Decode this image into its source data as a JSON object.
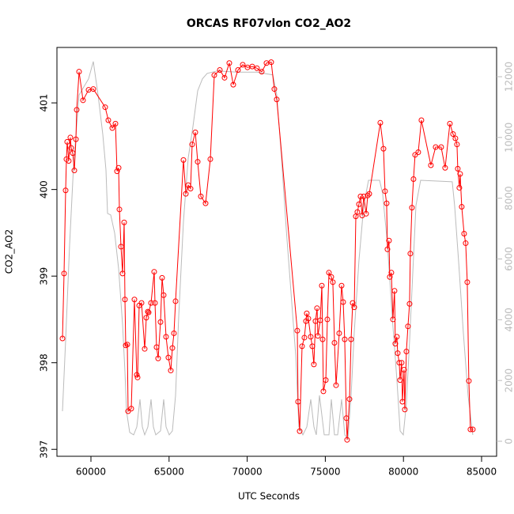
{
  "chart_data": {
    "type": "line",
    "title": "ORCAS RF07vlon CO2_AO2",
    "x_label": "UTC Seconds",
    "y_label": "CO2_AO2",
    "xlim": [
      57824,
      85961
    ],
    "xticks": [
      60000,
      65000,
      70000,
      75000,
      80000,
      85000
    ],
    "ylim": [
      396.92,
      401.64
    ],
    "yticks": [
      397,
      398,
      399,
      400,
      401
    ],
    "y2lim": [
      -495,
      12963
    ],
    "y2ticks": [
      0,
      2000,
      4000,
      6000,
      8000,
      10000,
      12000
    ],
    "series": [
      {
        "color": "#ff0000",
        "axis": "y",
        "markers": true,
        "x": [
          58178,
          58280,
          58380,
          58430,
          58480,
          58580,
          58683,
          58735,
          58836,
          58937,
          59039,
          59089,
          59241,
          59494,
          59848,
          60152,
          60911,
          61113,
          61366,
          61569,
          61670,
          61771,
          61822,
          61923,
          62024,
          62125,
          62176,
          62226,
          62328,
          62378,
          62580,
          62783,
          62934,
          62985,
          63086,
          63238,
          63440,
          63541,
          63642,
          63693,
          63845,
          64047,
          64098,
          64199,
          64300,
          64452,
          64553,
          64654,
          64806,
          64958,
          65110,
          65211,
          65312,
          65414,
          65920,
          66072,
          66224,
          66376,
          66477,
          66680,
          66831,
          67034,
          67337,
          67641,
          67894,
          68248,
          68551,
          68855,
          69108,
          69412,
          69715,
          70019,
          70322,
          70626,
          70929,
          71233,
          71536,
          71738,
          71890,
          73206,
          73256,
          73358,
          73510,
          73661,
          73763,
          73813,
          73914,
          74066,
          74167,
          74268,
          74370,
          74471,
          74522,
          74674,
          74775,
          74826,
          74876,
          75028,
          75129,
          75230,
          75382,
          75483,
          75585,
          75686,
          75888,
          76040,
          76141,
          76242,
          76344,
          76394,
          76546,
          76647,
          76749,
          76850,
          76951,
          77052,
          77153,
          77254,
          77356,
          77457,
          77609,
          77710,
          77811,
          78519,
          78722,
          78823,
          78924,
          78975,
          79076,
          79126,
          79227,
          79328,
          79430,
          79480,
          79581,
          79632,
          79733,
          79784,
          79885,
          79935,
          80036,
          80087,
          80188,
          80289,
          80391,
          80441,
          80542,
          80643,
          80745,
          80947,
          81149,
          81756,
          82060,
          82414,
          82667,
          82971,
          83173,
          83325,
          83426,
          83477,
          83578,
          83629,
          83730,
          83882,
          83983,
          84084,
          84186,
          84287,
          84438
        ],
        "values": [
          398.28,
          399.03,
          399.99,
          400.35,
          400.55,
          400.33,
          400.6,
          400.48,
          400.42,
          400.22,
          400.58,
          400.92,
          401.36,
          401.03,
          401.15,
          401.16,
          400.95,
          400.8,
          400.71,
          400.76,
          400.21,
          400.25,
          399.77,
          399.34,
          399.03,
          399.62,
          398.73,
          398.2,
          398.21,
          397.44,
          397.47,
          398.73,
          397.86,
          397.83,
          398.66,
          398.69,
          398.16,
          398.52,
          398.59,
          398.58,
          398.69,
          399.05,
          398.69,
          398.18,
          398.05,
          398.47,
          398.98,
          398.78,
          398.3,
          398.06,
          397.91,
          398.17,
          398.34,
          398.71,
          400.34,
          399.95,
          400.05,
          400.01,
          400.52,
          400.66,
          400.32,
          399.92,
          399.84,
          400.35,
          401.32,
          401.38,
          401.29,
          401.46,
          401.21,
          401.38,
          401.44,
          401.41,
          401.42,
          401.4,
          401.36,
          401.46,
          401.47,
          401.16,
          401.04,
          398.37,
          397.55,
          397.21,
          398.19,
          398.29,
          398.48,
          398.57,
          398.51,
          398.3,
          398.19,
          397.98,
          398.48,
          398.63,
          398.31,
          398.49,
          398.89,
          398.27,
          397.67,
          397.8,
          398.5,
          399.04,
          398.99,
          398.93,
          398.23,
          397.74,
          398.34,
          398.89,
          398.7,
          398.27,
          397.36,
          397.11,
          397.58,
          398.27,
          398.69,
          398.64,
          399.69,
          399.74,
          399.83,
          399.92,
          399.7,
          399.92,
          399.72,
          399.93,
          399.95,
          400.77,
          400.47,
          399.98,
          399.84,
          399.31,
          399.41,
          398.99,
          399.04,
          398.5,
          398.83,
          398.22,
          398.3,
          398.11,
          398,
          397.8,
          398,
          397.55,
          397.92,
          397.46,
          398.13,
          398.42,
          398.68,
          399.26,
          399.79,
          400.12,
          400.4,
          400.43,
          400.8,
          400.28,
          400.49,
          400.49,
          400.25,
          400.76,
          400.64,
          400.59,
          400.52,
          400.24,
          400.02,
          400.18,
          399.8,
          399.49,
          399.38,
          398.93,
          397.79,
          397.23,
          397.23
        ]
      },
      {
        "color": "#bbbbbb",
        "axis": "y2",
        "markers": false,
        "x": [
          58178,
          58381,
          58634,
          58887,
          59241,
          59848,
          60152,
          60455,
          60759,
          60961,
          61063,
          61265,
          61518,
          61771,
          62024,
          62176,
          62277,
          62479,
          62732,
          62935,
          63137,
          63289,
          63441,
          63643,
          63846,
          63997,
          64149,
          64453,
          64655,
          64807,
          65009,
          65212,
          65414,
          65617,
          65920,
          66224,
          66527,
          66831,
          67135,
          67438,
          68096,
          69361,
          70626,
          71638,
          71891,
          72195,
          72498,
          72802,
          73105,
          73308,
          73561,
          73814,
          74067,
          74269,
          74421,
          74623,
          74927,
          75231,
          75382,
          75585,
          75787,
          76040,
          76243,
          76445,
          76647,
          76850,
          77153,
          77457,
          77761,
          78165,
          78469,
          78671,
          78975,
          79279,
          79582,
          79785,
          79987,
          80189,
          80392,
          80797,
          81100,
          83124,
          83276,
          83529,
          83833,
          84136,
          84440
        ],
        "values": [
          990,
          3330,
          6460,
          9060,
          11400,
          11930,
          12500,
          11400,
          10100,
          8930,
          7500,
          7450,
          6850,
          5680,
          3850,
          2290,
          990,
          290,
          210,
          470,
          1380,
          470,
          210,
          470,
          1380,
          470,
          210,
          340,
          1380,
          470,
          210,
          340,
          1510,
          4110,
          7240,
          9320,
          10360,
          11540,
          11930,
          12110,
          12190,
          12150,
          12150,
          12060,
          11400,
          9320,
          6980,
          4900,
          2810,
          470,
          210,
          470,
          1380,
          470,
          210,
          1510,
          210,
          210,
          1380,
          210,
          210,
          1380,
          210,
          80,
          1510,
          3590,
          5940,
          7760,
          8590,
          8590,
          8590,
          8150,
          6460,
          4110,
          2030,
          340,
          210,
          1250,
          3330,
          7760,
          8590,
          8540,
          7760,
          5940,
          3590,
          1510,
          210
        ]
      }
    ]
  }
}
